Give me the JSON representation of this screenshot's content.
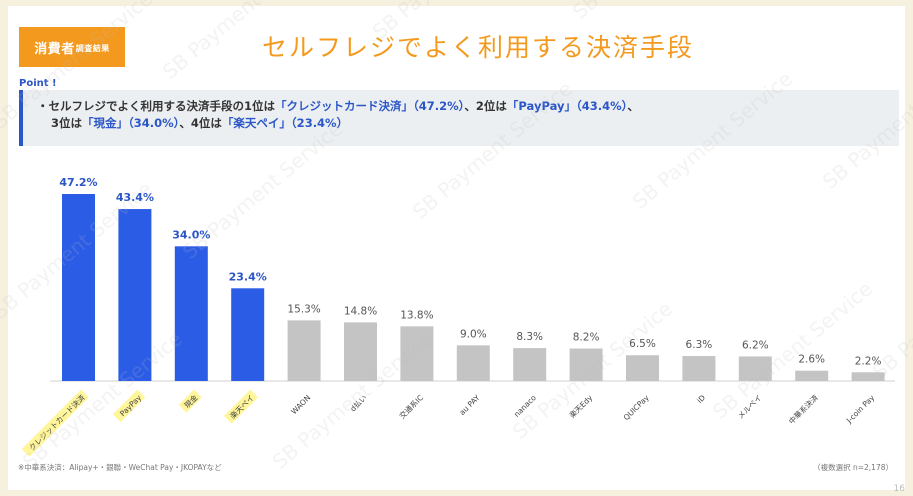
{
  "header": {
    "badge_main": "消費者",
    "badge_sub": "調査結果",
    "title": "セルフレジでよく利用する決済手段"
  },
  "point": {
    "label": "Point !",
    "line1_parts": [
      {
        "text": "・セルフレジでよく利用する決済手段の1位は「クレジットカード決済」（47.2%）、2位は「PayPay」（43.4%）、",
        "hl": false
      }
    ],
    "line2_parts": [
      {
        "text": "3位は「現金」（34.0%）、4位は「楽天ペイ」（23.4%）",
        "hl": false
      }
    ]
  },
  "chart_data": {
    "type": "bar",
    "categories": [
      "クレジットカード決済",
      "PayPay",
      "現金",
      "楽天ペイ",
      "WAON",
      "d払い",
      "交通系IC",
      "au PAY",
      "nanaco",
      "楽天Edy",
      "QUICPay",
      "iD",
      "メルペイ",
      "中華系決済",
      "J-coin Pay"
    ],
    "values": [
      47.2,
      43.4,
      34.0,
      23.4,
      15.3,
      14.8,
      13.8,
      9.0,
      8.3,
      8.2,
      6.5,
      6.3,
      6.2,
      2.6,
      2.2
    ],
    "value_labels": [
      "47.2%",
      "43.4%",
      "34.0%",
      "23.4%",
      "15.3%",
      "14.8%",
      "13.8%",
      "9.0%",
      "8.3%",
      "8.2%",
      "6.5%",
      "6.3%",
      "6.2%",
      "2.6%",
      "2.2%"
    ],
    "highlight_count": 4,
    "colors": {
      "highlight": "#2b5ce6",
      "other": "#c4c4c4",
      "label_highlight": "#2b56c8",
      "label_other": "#555555",
      "category_highlight_bg": "#fff59a"
    },
    "ylim": [
      0,
      50
    ],
    "grid": false
  },
  "footnotes": {
    "left": "※中華系決済：Alipay+・銀聯・WeChat Pay・JKOPAYなど",
    "right": "（複数選択 n=2,178）"
  },
  "watermark": "SB Payment Service",
  "page_number": "16"
}
